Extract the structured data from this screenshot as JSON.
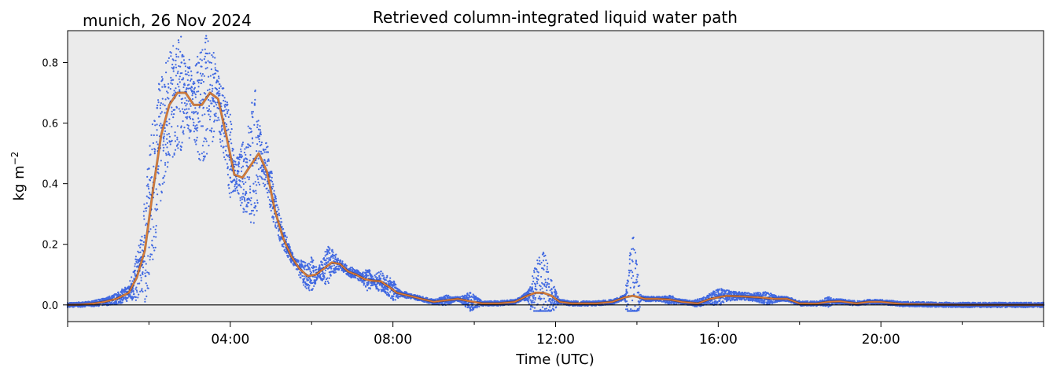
{
  "chart_data": {
    "type": "scatter",
    "title": "Retrieved column-integrated liquid water path",
    "subtitle": "munich, 26 Nov 2024",
    "xlabel": "Time (UTC)",
    "ylabel": "kg m",
    "ylabel_sup": "−2",
    "xlim": [
      0,
      24
    ],
    "ylim": [
      -0.055,
      0.905
    ],
    "x_ticks": [
      {
        "value": 4,
        "label": "04:00"
      },
      {
        "value": 8,
        "label": "08:00"
      },
      {
        "value": 12,
        "label": "12:00"
      },
      {
        "value": 16,
        "label": "16:00"
      },
      {
        "value": 20,
        "label": "20:00"
      }
    ],
    "y_ticks": [
      {
        "value": 0.0,
        "label": "0.0"
      },
      {
        "value": 0.2,
        "label": "0.2"
      },
      {
        "value": 0.4,
        "label": "0.4"
      },
      {
        "value": 0.6,
        "label": "0.6"
      },
      {
        "value": 0.8,
        "label": "0.8"
      }
    ],
    "zero_line": 0,
    "grid": false,
    "background": "#ebebeb",
    "series": [
      {
        "kind": "scatter",
        "color": "#4169e1",
        "x": [
          0.0,
          0.3,
          0.6,
          0.9,
          1.2,
          1.5,
          1.8,
          2.0,
          2.2,
          2.4,
          2.6,
          2.8,
          3.0,
          3.2,
          3.4,
          3.6,
          3.8,
          4.0,
          4.2,
          4.4,
          4.6,
          4.8,
          5.0,
          5.2,
          5.4,
          5.6,
          5.8,
          6.0,
          6.2,
          6.4,
          6.6,
          6.8,
          7.0,
          7.2,
          7.4,
          7.6,
          7.8,
          8.0,
          8.3,
          8.6,
          9.0,
          9.3,
          9.6,
          9.9,
          10.2,
          10.6,
          11.0,
          11.3,
          11.5,
          11.7,
          11.9,
          12.1,
          12.5,
          13.0,
          13.4,
          13.7,
          13.9,
          14.1,
          14.4,
          14.8,
          15.2,
          15.6,
          16.0,
          16.4,
          16.8,
          17.2,
          17.6,
          18.0,
          18.4,
          18.7,
          19.0,
          19.4,
          19.7,
          20.0,
          20.4,
          21.0,
          22.0,
          23.0,
          24.0
        ],
        "y": [
          0.0,
          0.002,
          0.012,
          0.02,
          0.035,
          0.06,
          0.2,
          0.45,
          0.65,
          0.72,
          0.78,
          0.8,
          0.62,
          0.74,
          0.8,
          0.75,
          0.58,
          0.42,
          0.44,
          0.52,
          0.66,
          0.46,
          0.33,
          0.25,
          0.18,
          0.14,
          0.08,
          0.05,
          0.12,
          0.18,
          0.15,
          0.12,
          0.1,
          0.09,
          0.11,
          0.06,
          0.05,
          0.02,
          0.04,
          0.02,
          0.015,
          0.03,
          0.02,
          0.04,
          0.01,
          0.005,
          0.01,
          0.04,
          0.12,
          0.17,
          0.08,
          0.01,
          0.005,
          0.005,
          0.01,
          0.03,
          0.22,
          0.025,
          0.02,
          0.03,
          0.01,
          0.02,
          0.05,
          0.04,
          0.035,
          0.04,
          0.02,
          0.005,
          0.003,
          0.025,
          0.01,
          0.005,
          0.015,
          0.01,
          0.005,
          0.002,
          0.0,
          0.0,
          0.0
        ]
      },
      {
        "kind": "line",
        "color": "#e07a2f",
        "x": [
          0.0,
          0.3,
          0.6,
          0.9,
          1.2,
          1.5,
          1.7,
          1.9,
          2.1,
          2.3,
          2.5,
          2.7,
          2.9,
          3.1,
          3.3,
          3.5,
          3.7,
          3.9,
          4.1,
          4.3,
          4.5,
          4.7,
          4.9,
          5.1,
          5.3,
          5.5,
          5.7,
          5.9,
          6.1,
          6.3,
          6.5,
          6.7,
          6.9,
          7.1,
          7.3,
          7.5,
          7.7,
          7.9,
          8.1,
          8.4,
          8.7,
          9.0,
          9.3,
          9.6,
          9.9,
          10.2,
          10.6,
          11.0,
          11.3,
          11.5,
          11.7,
          11.9,
          12.1,
          12.4,
          13.0,
          13.4,
          13.7,
          13.9,
          14.2,
          14.5,
          14.8,
          15.1,
          15.5,
          15.8,
          16.2,
          16.6,
          17.0,
          17.4,
          17.7,
          18.0,
          18.4,
          18.7,
          19.0,
          19.4,
          19.7,
          20.0,
          20.5,
          21.0,
          22.0,
          23.0,
          24.0
        ],
        "y": [
          0.0,
          0.001,
          0.004,
          0.01,
          0.02,
          0.04,
          0.09,
          0.18,
          0.38,
          0.56,
          0.66,
          0.7,
          0.7,
          0.66,
          0.66,
          0.7,
          0.68,
          0.56,
          0.43,
          0.42,
          0.46,
          0.5,
          0.44,
          0.31,
          0.22,
          0.16,
          0.12,
          0.095,
          0.1,
          0.12,
          0.14,
          0.135,
          0.11,
          0.1,
          0.085,
          0.08,
          0.078,
          0.06,
          0.04,
          0.03,
          0.02,
          0.01,
          0.015,
          0.02,
          0.012,
          0.005,
          0.005,
          0.01,
          0.03,
          0.04,
          0.04,
          0.03,
          0.01,
          0.005,
          0.005,
          0.01,
          0.025,
          0.03,
          0.02,
          0.02,
          0.018,
          0.01,
          0.005,
          0.02,
          0.03,
          0.028,
          0.025,
          0.02,
          0.02,
          0.005,
          0.004,
          0.01,
          0.012,
          0.005,
          0.01,
          0.01,
          0.003,
          0.002,
          0.0,
          0.0,
          0.0
        ]
      }
    ]
  }
}
